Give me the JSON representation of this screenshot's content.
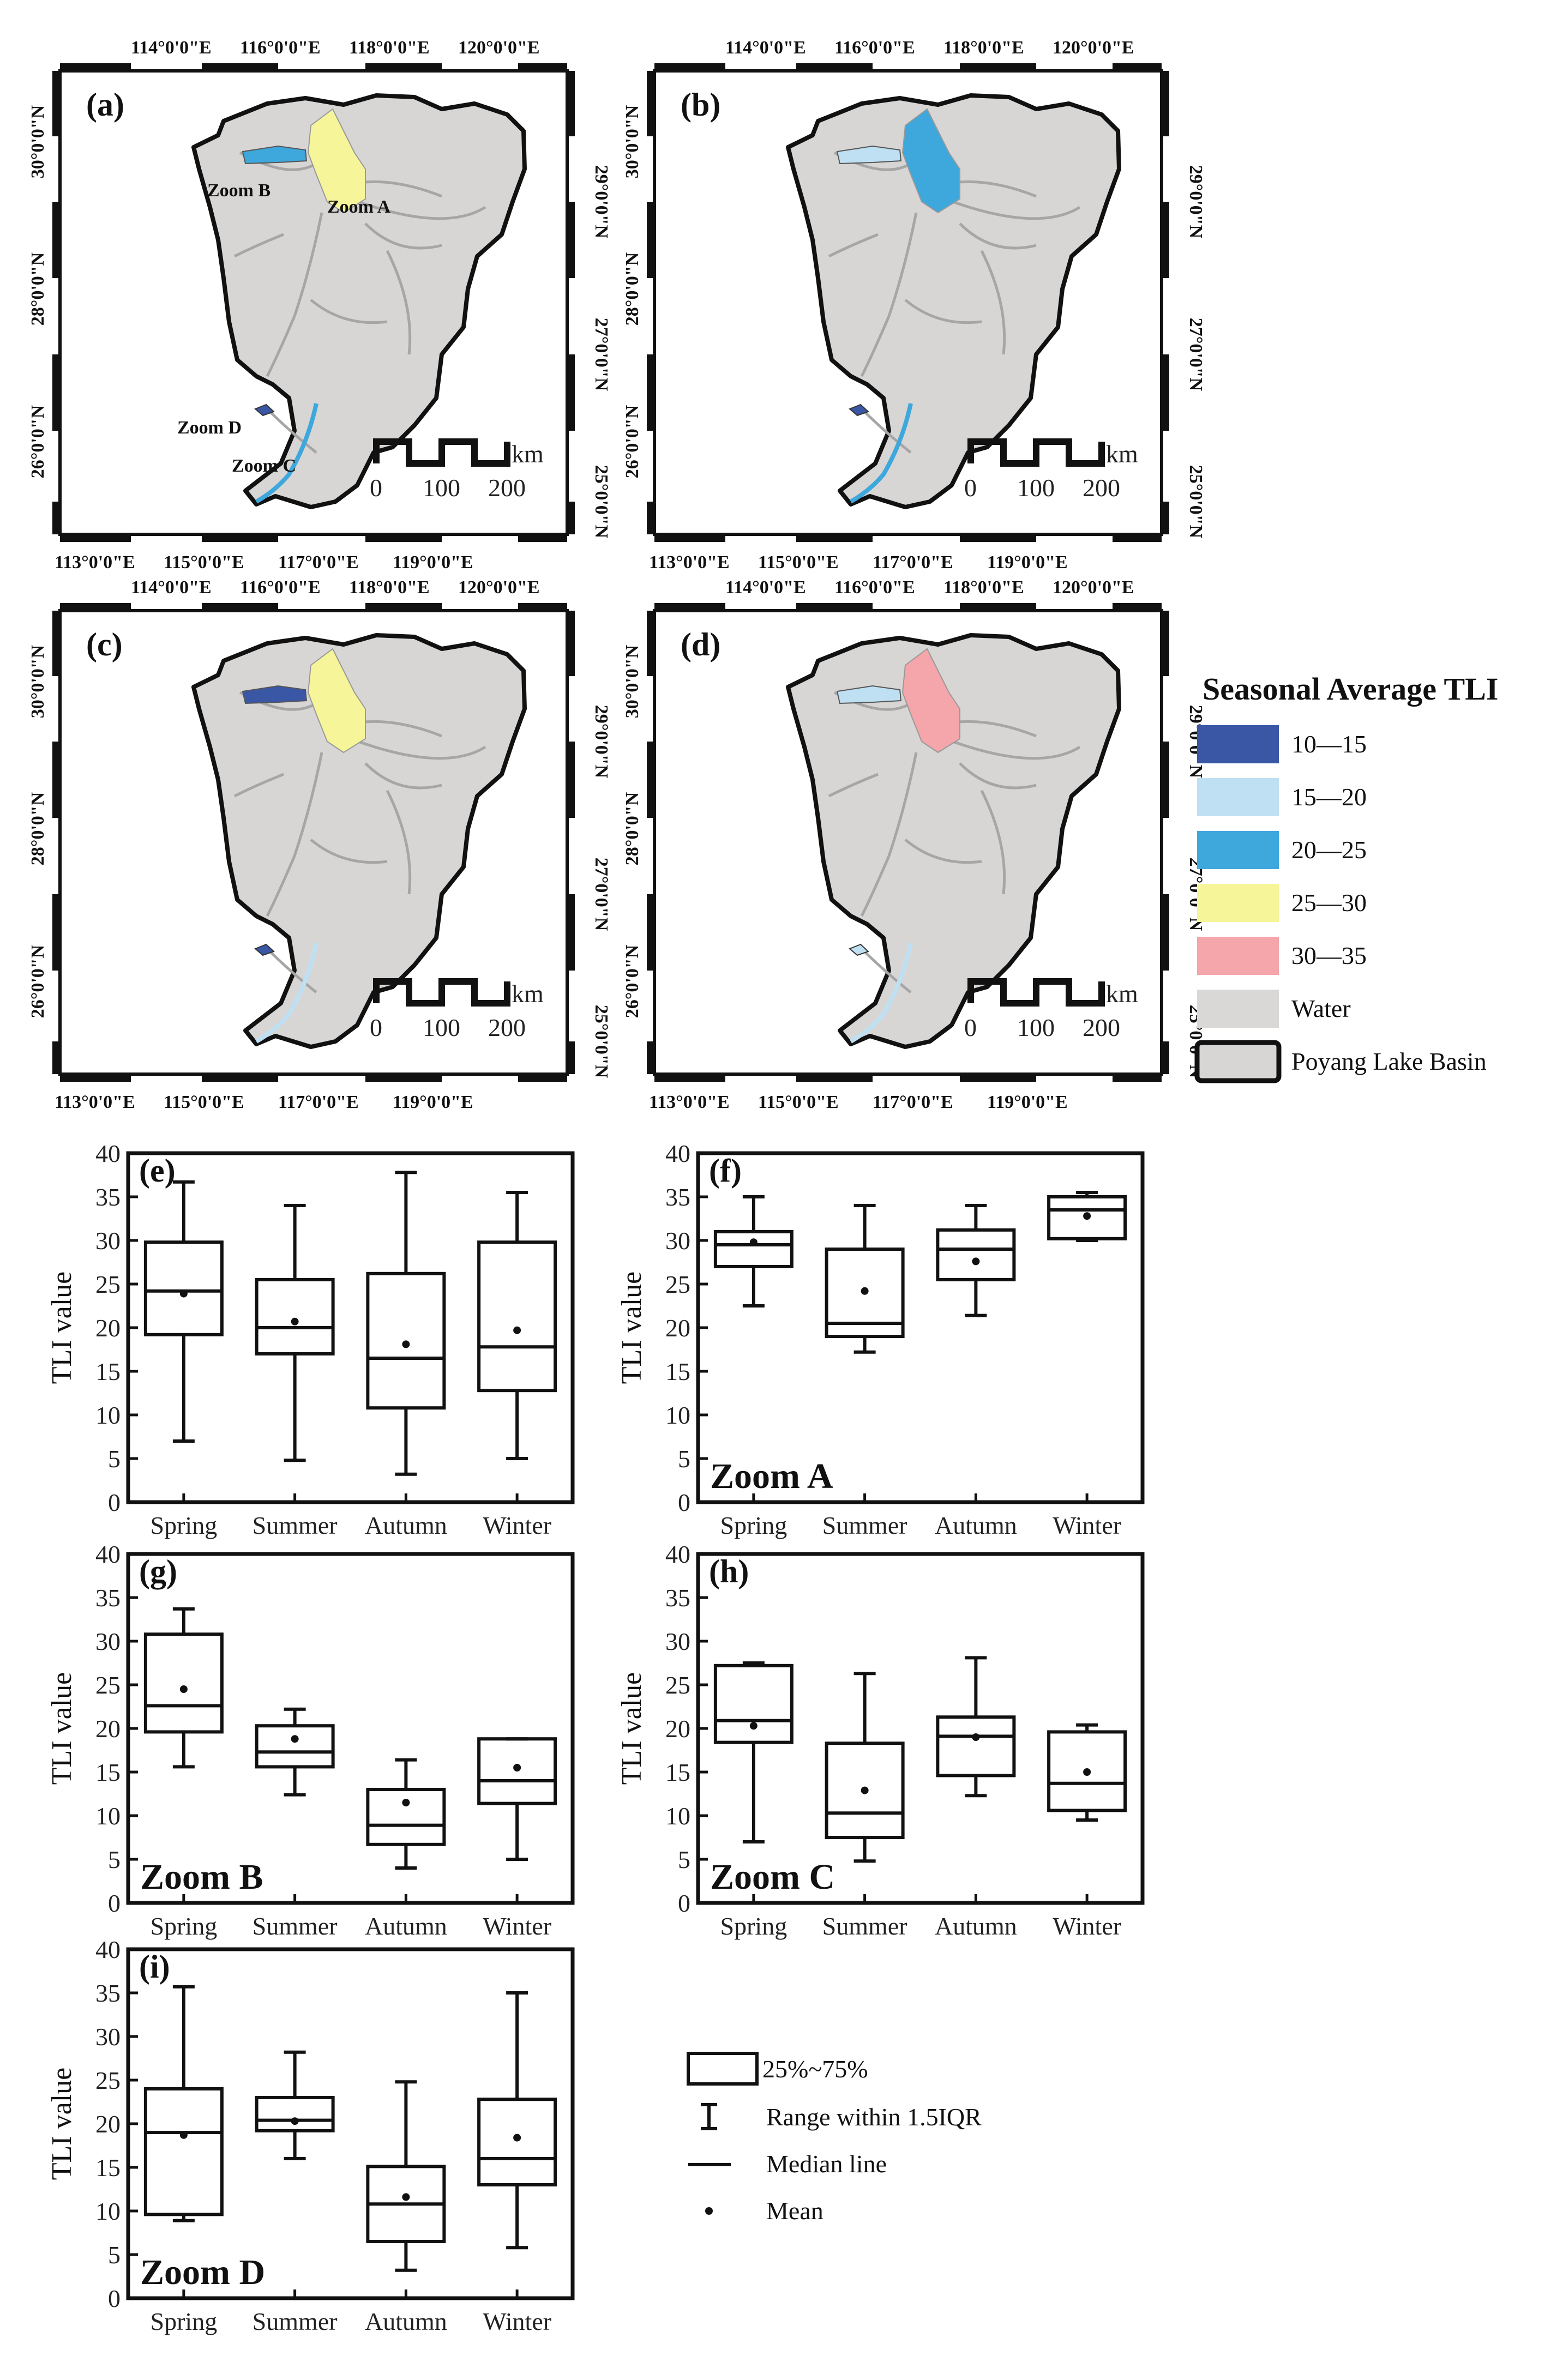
{
  "maps": {
    "top_lon_labels": [
      "114°0'0\"E",
      "116°0'0\"E",
      "118°0'0\"E",
      "120°0'0\"E"
    ],
    "bottom_lon_labels": [
      "113°0'0\"E",
      "115°0'0\"E",
      "117°0'0\"E",
      "119°0'0\"E"
    ],
    "left_lat_labels": [
      "30°0'0\"N",
      "28°0'0\"N",
      "26°0'0\"N"
    ],
    "right_lat_labels": [
      "29°0'0\"N",
      "27°0'0\"N",
      "25°0'0\"N"
    ],
    "scale_unit": "km",
    "scale_ticks": [
      "0",
      "100",
      "200"
    ],
    "panels": [
      {
        "letter": "(a)",
        "lake_class": "25—30",
        "west_class": "20—25",
        "south_class": "20—25",
        "d_class": "10—15",
        "zoom_labels": [
          "Zoom B",
          "Zoom A",
          "Zoom D",
          "Zoom C"
        ]
      },
      {
        "letter": "(b)",
        "lake_class": "20—25",
        "west_class": "15—20",
        "south_class": "20—25",
        "d_class": "10—15",
        "zoom_labels": []
      },
      {
        "letter": "(c)",
        "lake_class": "25—30",
        "west_class": "10—15",
        "south_class": "15—20",
        "d_class": "10—15",
        "zoom_labels": []
      },
      {
        "letter": "(d)",
        "lake_class": "30—35",
        "west_class": "15—20",
        "south_class": "15—20",
        "d_class": "15—20",
        "zoom_labels": []
      }
    ],
    "legend": {
      "title": "Seasonal Average TLI",
      "items": [
        {
          "label": "10—15",
          "color": "#3a57a6"
        },
        {
          "label": "15—20",
          "color": "#bfe0f2"
        },
        {
          "label": "20—25",
          "color": "#3ea7dc"
        },
        {
          "label": "25—30",
          "color": "#f6f59a"
        },
        {
          "label": "30—35",
          "color": "#f5a6ab"
        },
        {
          "label": "Water",
          "color": "#d9d8d7"
        },
        {
          "label": "Poyang Lake Basin",
          "color": "#d7d6d5"
        }
      ]
    }
  },
  "boxplot_legend": {
    "box": "25%~75%",
    "whisker": "Range within 1.5IQR",
    "median": "Median line",
    "mean": "Mean"
  },
  "chart_data": [
    {
      "type": "box",
      "panel": "(e)",
      "zoom_label": "",
      "ylabel": "TLI value",
      "ylim": [
        0,
        40
      ],
      "yticks": [
        0,
        5,
        10,
        15,
        20,
        25,
        30,
        35,
        40
      ],
      "categories": [
        "Spring",
        "Summer",
        "Autumn",
        "Winter"
      ],
      "boxes": [
        {
          "min": 7,
          "q1": 19.2,
          "median": 24.2,
          "q3": 29.8,
          "max": 36.7,
          "mean": 23.9
        },
        {
          "min": 4.8,
          "q1": 17,
          "median": 20,
          "q3": 25.5,
          "max": 34,
          "mean": 20.7
        },
        {
          "min": 3.2,
          "q1": 10.8,
          "median": 16.5,
          "q3": 26.2,
          "max": 37.8,
          "mean": 18.1
        },
        {
          "min": 5,
          "q1": 12.8,
          "median": 17.8,
          "q3": 29.8,
          "max": 35.5,
          "mean": 19.7
        }
      ]
    },
    {
      "type": "box",
      "panel": "(f)",
      "zoom_label": "Zoom A",
      "ylabel": "TLI value",
      "ylim": [
        0,
        40
      ],
      "yticks": [
        0,
        5,
        10,
        15,
        20,
        25,
        30,
        35,
        40
      ],
      "categories": [
        "Spring",
        "Summer",
        "Autumn",
        "Winter"
      ],
      "boxes": [
        {
          "min": 22.5,
          "q1": 27,
          "median": 29.5,
          "q3": 31,
          "max": 35,
          "mean": 29.8
        },
        {
          "min": 17.2,
          "q1": 19,
          "median": 20.5,
          "q3": 29,
          "max": 34,
          "mean": 24.2
        },
        {
          "min": 21.4,
          "q1": 25.5,
          "median": 29,
          "q3": 31.2,
          "max": 34,
          "mean": 27.6
        },
        {
          "min": 30,
          "q1": 30.2,
          "median": 33.5,
          "q3": 35,
          "max": 35.5,
          "mean": 32.8
        }
      ]
    },
    {
      "type": "box",
      "panel": "(g)",
      "zoom_label": "Zoom B",
      "ylabel": "TLI value",
      "ylim": [
        0,
        40
      ],
      "yticks": [
        0,
        5,
        10,
        15,
        20,
        25,
        30,
        35,
        40
      ],
      "categories": [
        "Spring",
        "Summer",
        "Autumn",
        "Winter"
      ],
      "boxes": [
        {
          "min": 15.6,
          "q1": 19.6,
          "median": 22.6,
          "q3": 30.8,
          "max": 33.7,
          "mean": 24.5
        },
        {
          "min": 12.4,
          "q1": 15.6,
          "median": 17.3,
          "q3": 20.3,
          "max": 22.2,
          "mean": 18.8
        },
        {
          "min": 4,
          "q1": 6.7,
          "median": 8.9,
          "q3": 13,
          "max": 16.4,
          "mean": 11.5
        },
        {
          "min": 5,
          "q1": 11.4,
          "median": 14,
          "q3": 18.8,
          "max": 18.8,
          "mean": 15.5
        }
      ]
    },
    {
      "type": "box",
      "panel": "(h)",
      "zoom_label": "Zoom C",
      "ylabel": "TLI value",
      "ylim": [
        0,
        40
      ],
      "yticks": [
        0,
        5,
        10,
        15,
        20,
        25,
        30,
        35,
        40
      ],
      "categories": [
        "Spring",
        "Summer",
        "Autumn",
        "Winter"
      ],
      "boxes": [
        {
          "min": 7,
          "q1": 18.4,
          "median": 20.9,
          "q3": 27.2,
          "max": 27.5,
          "mean": 20.3
        },
        {
          "min": 4.8,
          "q1": 7.5,
          "median": 10.3,
          "q3": 18.3,
          "max": 26.3,
          "mean": 12.9
        },
        {
          "min": 12.3,
          "q1": 14.6,
          "median": 19.1,
          "q3": 21.3,
          "max": 28.1,
          "mean": 19
        },
        {
          "min": 9.5,
          "q1": 10.6,
          "median": 13.7,
          "q3": 19.6,
          "max": 20.4,
          "mean": 15
        }
      ]
    },
    {
      "type": "box",
      "panel": "(i)",
      "zoom_label": "Zoom D",
      "ylabel": "TLI value",
      "ylim": [
        0,
        40
      ],
      "yticks": [
        0,
        5,
        10,
        15,
        20,
        25,
        30,
        35,
        40
      ],
      "categories": [
        "Spring",
        "Summer",
        "Autumn",
        "Winter"
      ],
      "boxes": [
        {
          "min": 8.9,
          "q1": 9.6,
          "median": 19,
          "q3": 24,
          "max": 35.7,
          "mean": 18.7
        },
        {
          "min": 16,
          "q1": 19.2,
          "median": 20.4,
          "q3": 23,
          "max": 28.2,
          "mean": 20.3
        },
        {
          "min": 3.2,
          "q1": 6.5,
          "median": 10.8,
          "q3": 15.1,
          "max": 24.8,
          "mean": 11.6
        },
        {
          "min": 5.8,
          "q1": 13,
          "median": 16,
          "q3": 22.8,
          "max": 35,
          "mean": 18.4
        }
      ]
    }
  ]
}
